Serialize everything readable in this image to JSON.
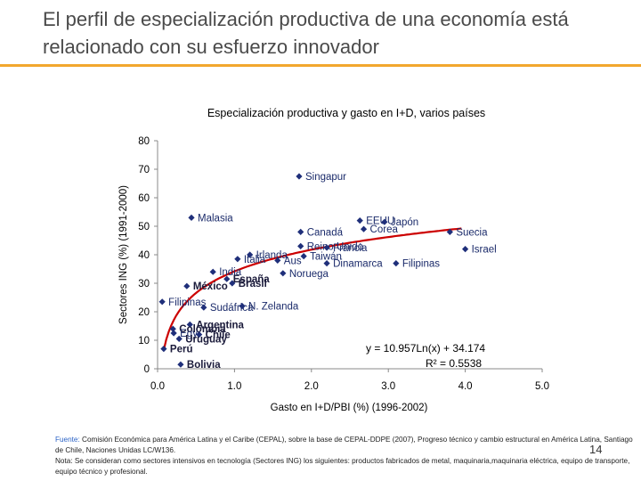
{
  "slide": {
    "title": "El perfil de especialización productiva de una economía está relacionado con su esfuerzo innovador",
    "page_number": "14",
    "accent_color": "#f2a72e"
  },
  "footnote": {
    "source_label": "Fuente:",
    "source_text": " Comisión Económica para América Latina y el Caribe (CEPAL), sobre la base de CEPAL-DDPE (2007), Progreso técnico y cambio estructural en América Latina, Santiago de Chile, Naciones Unidas LC/W136.",
    "note": "Nota: Se consideran como sectores intensivos en tecnología (Sectores ING) los siguientes: productos fabricados de metal, maquinaria,maquinaria eléctrica, equipo de transporte, equipo técnico y profesional."
  },
  "chart_data": {
    "type": "scatter",
    "title": "Especialización productiva y gasto en I+D, varios países",
    "xlabel": "Gasto en I+D/PBI (%) (1996-2002)",
    "ylabel": "Sectores ING (%) (1991-2000)",
    "xlim": [
      0,
      5
    ],
    "ylim": [
      0,
      80
    ],
    "xticks": [
      "0.0",
      "1.0",
      "2.0",
      "3.0",
      "4.0",
      "5.0"
    ],
    "yticks": [
      "0",
      "10",
      "20",
      "30",
      "40",
      "50",
      "60",
      "70",
      "80"
    ],
    "marker_color": "#1f2f7a",
    "trendline_color": "#cc0000",
    "trendline": {
      "a": 10.957,
      "b": 34.174,
      "x_start": 0.08,
      "x_end": 3.95
    },
    "equation": "y = 10.957Ln(x) + 34.174",
    "r_squared": "R² = 0.5538",
    "points": [
      {
        "label": "Singapur",
        "x": 1.84,
        "y": 67.5,
        "bold": false
      },
      {
        "label": "Malasia",
        "x": 0.44,
        "y": 53,
        "bold": false
      },
      {
        "label": "EEUU",
        "x": 2.63,
        "y": 52,
        "bold": false
      },
      {
        "label": "Japón",
        "x": 2.95,
        "y": 51.5,
        "bold": false
      },
      {
        "label": "Corea",
        "x": 2.68,
        "y": 49,
        "bold": false
      },
      {
        "label": "Canadá",
        "x": 1.86,
        "y": 48,
        "bold": false
      },
      {
        "label": "Suecia",
        "x": 3.8,
        "y": 48,
        "bold": false
      },
      {
        "label": "Reino Unido",
        "x": 1.86,
        "y": 43,
        "bold": false
      },
      {
        "label": "Francia",
        "x": 2.2,
        "y": 42.5,
        "bold": false
      },
      {
        "label": "Israel",
        "x": 4.0,
        "y": 42,
        "bold": false
      },
      {
        "label": "Irlanda",
        "x": 1.2,
        "y": 40,
        "bold": false
      },
      {
        "label": "Taiwán",
        "x": 1.9,
        "y": 39.5,
        "bold": false
      },
      {
        "label": "Italia",
        "x": 1.04,
        "y": 38.5,
        "bold": false
      },
      {
        "label": "Aus",
        "x": 1.56,
        "y": 38,
        "bold": false
      },
      {
        "label": "Dinamarca",
        "x": 2.2,
        "y": 37,
        "bold": false
      },
      {
        "label": "Filipinas",
        "x": 3.1,
        "y": 37,
        "bold": false
      },
      {
        "label": "India",
        "x": 0.72,
        "y": 34,
        "bold": false
      },
      {
        "label": "España",
        "x": 0.9,
        "y": 31.5,
        "bold": true
      },
      {
        "label": "Noruega",
        "x": 1.63,
        "y": 33.5,
        "bold": false
      },
      {
        "label": "Brasil",
        "x": 0.97,
        "y": 30,
        "bold": true
      },
      {
        "label": "México",
        "x": 0.38,
        "y": 29,
        "bold": true
      },
      {
        "label": "Filipinas",
        "x": 0.06,
        "y": 23.5,
        "bold": false
      },
      {
        "label": "Sudáfrica",
        "x": 0.6,
        "y": 21.5,
        "bold": false
      },
      {
        "label": "N. Zelanda",
        "x": 1.1,
        "y": 22,
        "bold": false
      },
      {
        "label": "Argentina",
        "x": 0.42,
        "y": 15.5,
        "bold": true
      },
      {
        "label": "Colombia",
        "x": 0.2,
        "y": 14,
        "bold": true
      },
      {
        "label": "Chile",
        "x": 0.54,
        "y": 12,
        "bold": true
      },
      {
        "label": "Egy",
        "x": 0.21,
        "y": 12.5,
        "bold": false
      },
      {
        "label": "Uruguay",
        "x": 0.28,
        "y": 10.5,
        "bold": true
      },
      {
        "label": "Perú",
        "x": 0.08,
        "y": 7,
        "bold": true
      },
      {
        "label": "Bolivia",
        "x": 0.3,
        "y": 1.5,
        "bold": true
      }
    ]
  }
}
